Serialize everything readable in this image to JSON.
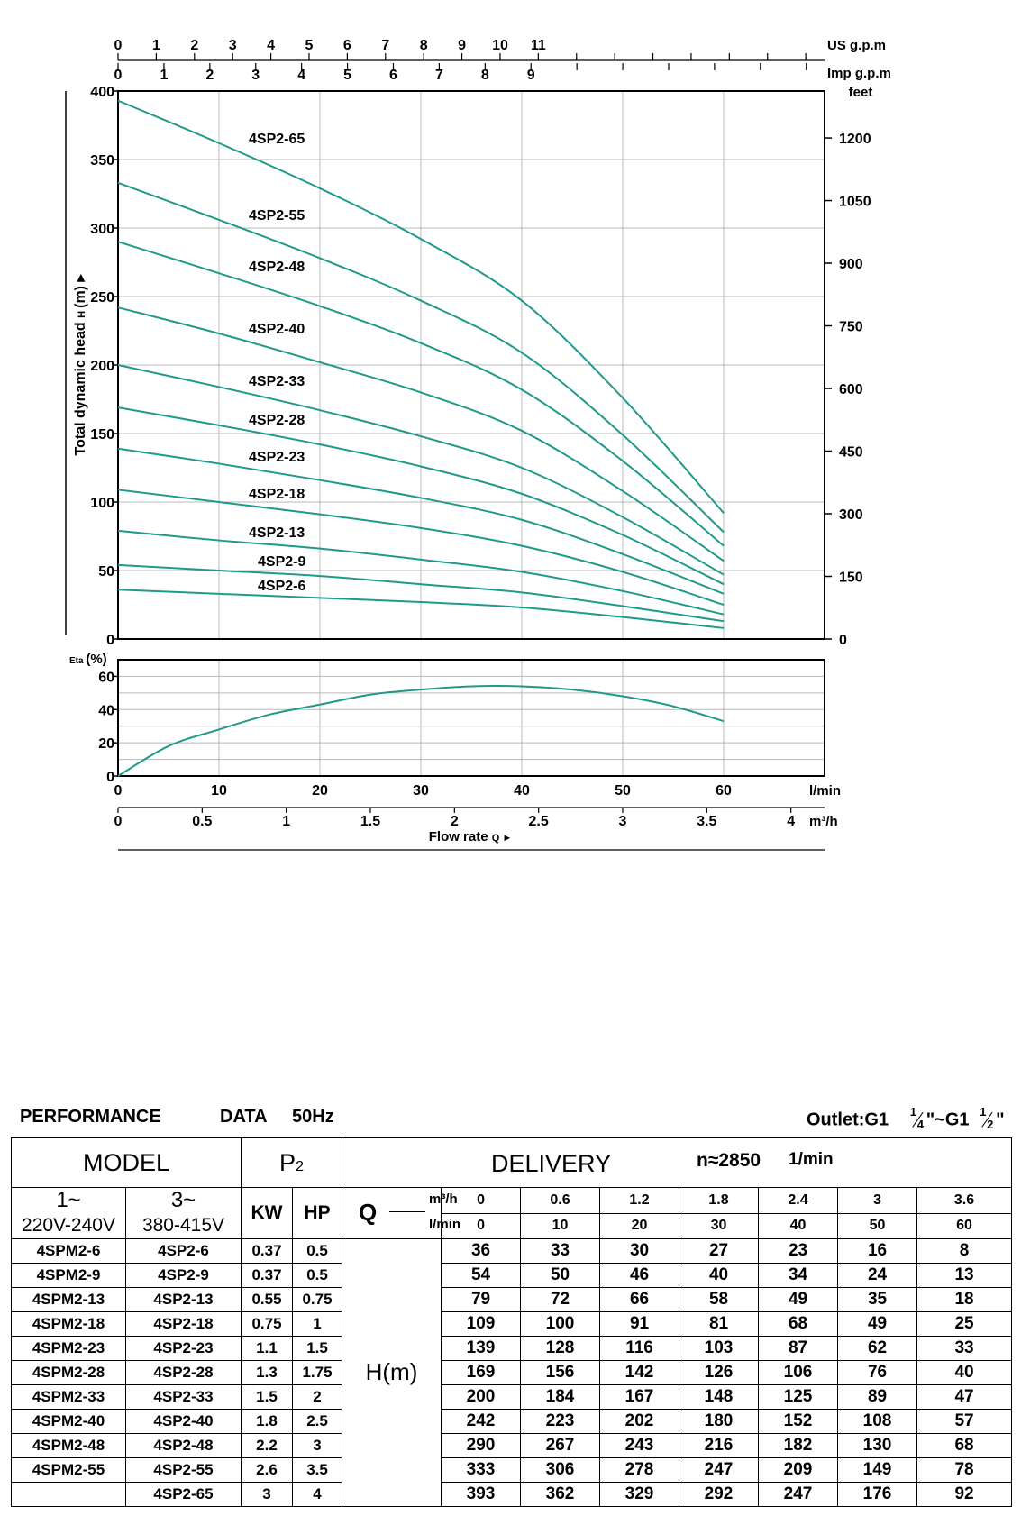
{
  "chart_data": [
    {
      "type": "line",
      "ylabel": "Total dynamic head",
      "ylabel_symbol": "H",
      "ylabel_unit": "(m)",
      "ylim": [
        0,
        400
      ],
      "y_ticks": [
        "0",
        "50",
        "100",
        "150",
        "200",
        "250",
        "300",
        "350",
        "400"
      ],
      "y2_label": "feet",
      "y2_ticks": [
        "0",
        "150",
        "300",
        "450",
        "600",
        "750",
        "900",
        "1050",
        "1200"
      ],
      "y2_values": [
        0,
        150,
        300,
        450,
        600,
        750,
        900,
        1050,
        1200
      ],
      "top_axis_1": {
        "label": "US g.p.m",
        "ticks": [
          "0",
          "1",
          "2",
          "3",
          "4",
          "5",
          "6",
          "7",
          "8",
          "9",
          "10",
          "11"
        ]
      },
      "top_axis_2": {
        "label": "Imp g.p.m",
        "ticks": [
          "0",
          "1",
          "2",
          "3",
          "4",
          "5",
          "6",
          "7",
          "8",
          "9"
        ]
      },
      "x": [
        0,
        10,
        20,
        30,
        40,
        50,
        60
      ],
      "xlim": [
        0,
        70
      ],
      "grid": true,
      "series": [
        {
          "name": "4SP2-65",
          "values": [
            393,
            362,
            329,
            292,
            247,
            176,
            92
          ]
        },
        {
          "name": "4SP2-55",
          "values": [
            333,
            306,
            278,
            247,
            209,
            149,
            78
          ]
        },
        {
          "name": "4SP2-48",
          "values": [
            290,
            267,
            243,
            216,
            182,
            130,
            68
          ]
        },
        {
          "name": "4SP2-40",
          "values": [
            242,
            223,
            202,
            180,
            152,
            108,
            57
          ]
        },
        {
          "name": "4SP2-33",
          "values": [
            200,
            184,
            167,
            148,
            125,
            89,
            47
          ]
        },
        {
          "name": "4SP2-28",
          "values": [
            169,
            156,
            142,
            126,
            106,
            76,
            40
          ]
        },
        {
          "name": "4SP2-23",
          "values": [
            139,
            128,
            116,
            103,
            87,
            62,
            33
          ]
        },
        {
          "name": "4SP2-18",
          "values": [
            109,
            100,
            91,
            81,
            68,
            49,
            25
          ]
        },
        {
          "name": "4SP2-13",
          "values": [
            79,
            72,
            66,
            58,
            49,
            35,
            18
          ]
        },
        {
          "name": "4SP2-9",
          "values": [
            54,
            50,
            46,
            40,
            34,
            24,
            13
          ]
        },
        {
          "name": "4SP2-6",
          "values": [
            36,
            33,
            30,
            27,
            23,
            16,
            8
          ]
        }
      ],
      "line_color": "#1f9a8a"
    },
    {
      "type": "line",
      "ylabel": "Eta",
      "ylabel_unit": "(%)",
      "ylim": [
        0,
        70
      ],
      "y_ticks": [
        "0",
        "20",
        "40",
        "60"
      ],
      "x": [
        0,
        5,
        10,
        15,
        20,
        25,
        30,
        35,
        40,
        45,
        50,
        55,
        60
      ],
      "values": [
        0,
        18,
        28,
        37,
        43,
        49,
        52,
        54,
        54,
        52,
        48,
        42,
        33
      ],
      "x_ticks": [
        "0",
        "10",
        "20",
        "30",
        "40",
        "50",
        "60"
      ],
      "xlabel_unit": "l/min",
      "x2_ticks": [
        "0",
        "0.5",
        "1",
        "1.5",
        "2",
        "2.5",
        "3",
        "3.5",
        "4"
      ],
      "x2_values": [
        0,
        0.5,
        1,
        1.5,
        2,
        2.5,
        3,
        3.5,
        4
      ],
      "x2_unit": "m³/h",
      "xlabel": "Flow rate",
      "xlabel_symbol": "Q",
      "grid": true,
      "line_color": "#1f9a8a"
    }
  ],
  "performance": {
    "title": "PERFORMANCE",
    "data_label": "DATA",
    "freq": "50Hz",
    "outlet": "Outlet:G1",
    "outlet_mid": "\"~G1",
    "frac_num": "1",
    "frac_den_a": "4",
    "frac_den_b": "2",
    "outlet_end": "\"",
    "model_header": "MODEL",
    "p2_header": "P",
    "p2_sub": "2",
    "delivery_header": "DELIVERY",
    "speed": "n≈2850",
    "speed_unit": "1/min",
    "col_1ph_a": "1~",
    "col_1ph_b": "220V-240V",
    "col_3ph_a": "3~",
    "col_3ph_b": "380-415V",
    "kw": "KW",
    "hp": "HP",
    "q": "Q",
    "unit_m3h": "m³/h",
    "unit_lmin": "l/min",
    "hm": "H(m)",
    "q_m3h": [
      "0",
      "0.6",
      "1.2",
      "1.8",
      "2.4",
      "3",
      "3.6"
    ],
    "q_lmin": [
      "0",
      "10",
      "20",
      "30",
      "40",
      "50",
      "60"
    ],
    "rows": [
      {
        "m1": "4SPM2-6",
        "m3": "4SP2-6",
        "kw": "0.37",
        "hp": "0.5",
        "h": [
          "36",
          "33",
          "30",
          "27",
          "23",
          "16",
          "8"
        ]
      },
      {
        "m1": "4SPM2-9",
        "m3": "4SP2-9",
        "kw": "0.37",
        "hp": "0.5",
        "h": [
          "54",
          "50",
          "46",
          "40",
          "34",
          "24",
          "13"
        ]
      },
      {
        "m1": "4SPM2-13",
        "m3": "4SP2-13",
        "kw": "0.55",
        "hp": "0.75",
        "h": [
          "79",
          "72",
          "66",
          "58",
          "49",
          "35",
          "18"
        ]
      },
      {
        "m1": "4SPM2-18",
        "m3": "4SP2-18",
        "kw": "0.75",
        "hp": "1",
        "h": [
          "109",
          "100",
          "91",
          "81",
          "68",
          "49",
          "25"
        ]
      },
      {
        "m1": "4SPM2-23",
        "m3": "4SP2-23",
        "kw": "1.1",
        "hp": "1.5",
        "h": [
          "139",
          "128",
          "116",
          "103",
          "87",
          "62",
          "33"
        ]
      },
      {
        "m1": "4SPM2-28",
        "m3": "4SP2-28",
        "kw": "1.3",
        "hp": "1.75",
        "h": [
          "169",
          "156",
          "142",
          "126",
          "106",
          "76",
          "40"
        ]
      },
      {
        "m1": "4SPM2-33",
        "m3": "4SP2-33",
        "kw": "1.5",
        "hp": "2",
        "h": [
          "200",
          "184",
          "167",
          "148",
          "125",
          "89",
          "47"
        ]
      },
      {
        "m1": "4SPM2-40",
        "m3": "4SP2-40",
        "kw": "1.8",
        "hp": "2.5",
        "h": [
          "242",
          "223",
          "202",
          "180",
          "152",
          "108",
          "57"
        ]
      },
      {
        "m1": "4SPM2-48",
        "m3": "4SP2-48",
        "kw": "2.2",
        "hp": "3",
        "h": [
          "290",
          "267",
          "243",
          "216",
          "182",
          "130",
          "68"
        ]
      },
      {
        "m1": "4SPM2-55",
        "m3": "4SP2-55",
        "kw": "2.6",
        "hp": "3.5",
        "h": [
          "333",
          "306",
          "278",
          "247",
          "209",
          "149",
          "78"
        ]
      },
      {
        "m1": "",
        "m3": "4SP2-65",
        "kw": "3",
        "hp": "4",
        "h": [
          "393",
          "362",
          "329",
          "292",
          "247",
          "176",
          "92"
        ]
      }
    ]
  }
}
